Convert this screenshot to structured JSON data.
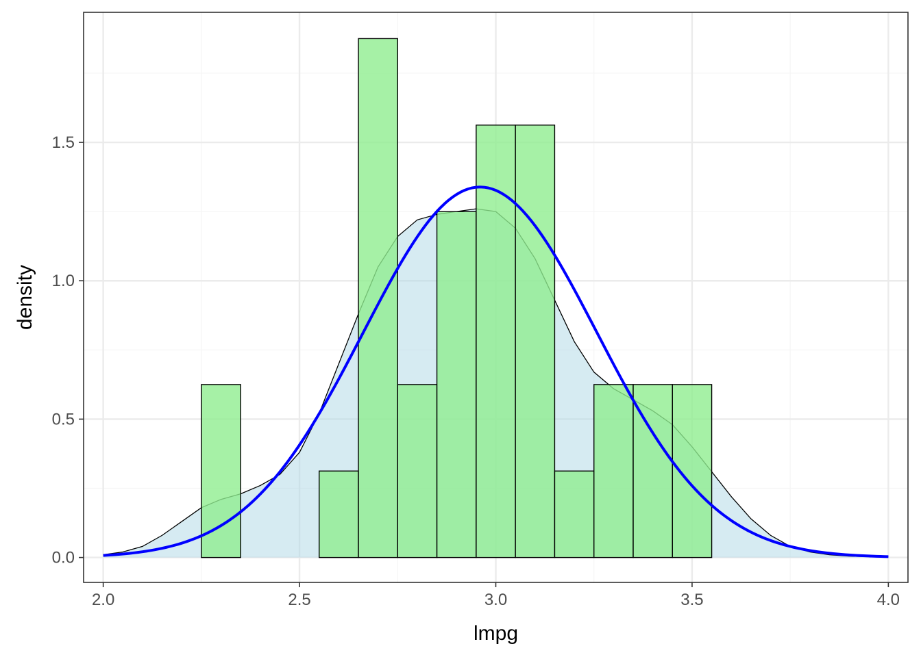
{
  "chart_data": {
    "type": "histogram",
    "xlabel": "lmpg",
    "ylabel": "density",
    "xlim": [
      1.95,
      4.05
    ],
    "ylim": [
      -0.09,
      1.97
    ],
    "x_ticks": [
      2.0,
      2.5,
      3.0,
      3.5,
      4.0
    ],
    "x_tick_labels": [
      "2.0",
      "2.5",
      "3.0",
      "3.5",
      "4.0"
    ],
    "y_ticks": [
      0.0,
      0.5,
      1.0,
      1.5
    ],
    "y_tick_labels": [
      "0.0",
      "0.5",
      "1.0",
      "1.5"
    ],
    "grid": true,
    "bins": [
      {
        "x0": 2.25,
        "x1": 2.35,
        "density": 0.625
      },
      {
        "x0": 2.55,
        "x1": 2.65,
        "density": 0.3125
      },
      {
        "x0": 2.65,
        "x1": 2.75,
        "density": 1.875
      },
      {
        "x0": 2.75,
        "x1": 2.85,
        "density": 0.625
      },
      {
        "x0": 2.85,
        "x1": 2.95,
        "density": 1.25
      },
      {
        "x0": 2.95,
        "x1": 3.05,
        "density": 1.5625
      },
      {
        "x0": 3.05,
        "x1": 3.15,
        "density": 1.5625
      },
      {
        "x0": 3.15,
        "x1": 3.25,
        "density": 0.3125
      },
      {
        "x0": 3.25,
        "x1": 3.35,
        "density": 0.625
      },
      {
        "x0": 3.35,
        "x1": 3.45,
        "density": 0.625
      },
      {
        "x0": 3.45,
        "x1": 3.55,
        "density": 0.625
      }
    ],
    "kde": {
      "x": [
        2.0,
        2.05,
        2.1,
        2.15,
        2.2,
        2.25,
        2.3,
        2.35,
        2.4,
        2.45,
        2.5,
        2.55,
        2.6,
        2.65,
        2.7,
        2.75,
        2.8,
        2.85,
        2.9,
        2.95,
        3.0,
        3.05,
        3.1,
        3.15,
        3.2,
        3.25,
        3.3,
        3.35,
        3.4,
        3.45,
        3.5,
        3.55,
        3.6,
        3.65,
        3.7,
        3.75,
        3.8,
        3.85,
        3.9,
        3.95,
        4.0
      ],
      "y": [
        0.01,
        0.02,
        0.04,
        0.08,
        0.13,
        0.18,
        0.21,
        0.23,
        0.26,
        0.3,
        0.38,
        0.52,
        0.7,
        0.88,
        1.05,
        1.16,
        1.22,
        1.24,
        1.25,
        1.26,
        1.25,
        1.19,
        1.08,
        0.93,
        0.78,
        0.67,
        0.61,
        0.57,
        0.53,
        0.48,
        0.4,
        0.31,
        0.22,
        0.14,
        0.08,
        0.04,
        0.02,
        0.01,
        0.005,
        0.003,
        0.002
      ],
      "fill": "#add8e6",
      "fill_opacity": 0.5,
      "stroke": "#000000"
    },
    "normal_curve": {
      "mean": 2.96,
      "sd": 0.298,
      "stroke": "#0000ff"
    },
    "colors": {
      "bar_fill": "#90ee90",
      "bar_opacity": 0.8,
      "bar_stroke": "#000000",
      "grid_major": "#ebebeb",
      "grid_minor": "#f5f5f5",
      "panel_border": "#333333"
    }
  }
}
